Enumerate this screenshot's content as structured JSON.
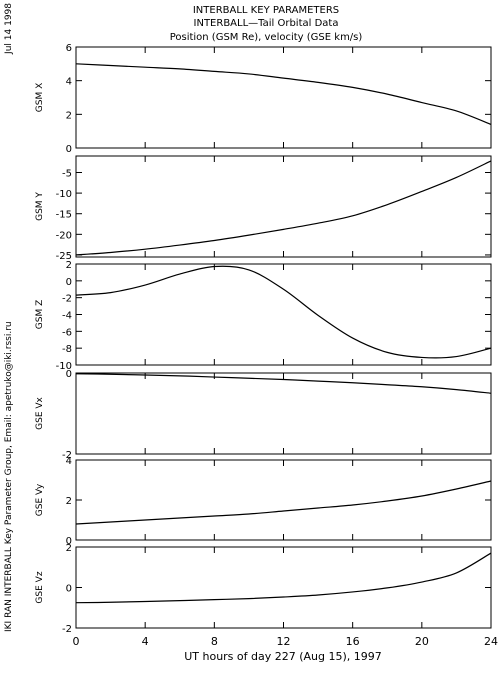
{
  "header": {
    "line1": "INTERBALL KEY PARAMETERS",
    "line2": "INTERBALL—Tail Orbital Data",
    "line3": "Position (GSM Re), velocity (GSE km/s)"
  },
  "side_date": "Jul 14 1998",
  "side_credit": "IKI RAN INTERBALL Key Parameter Group, Email: apetruko@iki.rssi.ru",
  "chart_data": {
    "type": "line",
    "xlabel": "UT hours of day 227 (Aug 15), 1997",
    "xlim": [
      0,
      24
    ],
    "xticks": [
      "0",
      "4",
      "8",
      "12",
      "16",
      "20",
      "24"
    ],
    "x": [
      0,
      2,
      4,
      6,
      8,
      10,
      12,
      14,
      16,
      18,
      20,
      22,
      24
    ],
    "panels": [
      {
        "ylabel": "GSM X",
        "ylim": [
          0,
          6
        ],
        "yticks": [
          "0",
          "2",
          "4",
          "6"
        ],
        "values": [
          5.0,
          4.9,
          4.8,
          4.7,
          4.55,
          4.4,
          4.15,
          3.9,
          3.6,
          3.2,
          2.7,
          2.2,
          1.4
        ]
      },
      {
        "ylabel": "GSM Y",
        "ylim": [
          -25.5,
          -1
        ],
        "yticks": [
          "-25",
          "-20",
          "-15",
          "-10",
          "-5"
        ],
        "values": [
          -25.0,
          -24.4,
          -23.6,
          -22.6,
          -21.5,
          -20.2,
          -18.8,
          -17.3,
          -15.5,
          -12.8,
          -9.6,
          -6.2,
          -2.2
        ]
      },
      {
        "ylabel": "GSM Z",
        "ylim": [
          -10,
          2
        ],
        "yticks": [
          "-10",
          "-8",
          "-6",
          "-4",
          "-2",
          "0",
          "2"
        ],
        "values": [
          -1.7,
          -1.4,
          -0.5,
          0.8,
          1.7,
          1.3,
          -1.0,
          -4.1,
          -6.8,
          -8.5,
          -9.1,
          -9.0,
          -8.0
        ]
      },
      {
        "ylabel": "GSE Vx",
        "ylim": [
          -2,
          0
        ],
        "yticks": [
          "-2",
          "0"
        ],
        "values": [
          -0.02,
          -0.03,
          -0.05,
          -0.07,
          -0.1,
          -0.13,
          -0.16,
          -0.2,
          -0.24,
          -0.29,
          -0.34,
          -0.41,
          -0.5
        ]
      },
      {
        "ylabel": "GSE Vy",
        "ylim": [
          0,
          4
        ],
        "yticks": [
          "0",
          "2",
          "4"
        ],
        "values": [
          0.8,
          0.9,
          1.0,
          1.1,
          1.2,
          1.3,
          1.45,
          1.6,
          1.75,
          1.95,
          2.2,
          2.55,
          2.95
        ]
      },
      {
        "ylabel": "GSE Vz",
        "ylim": [
          -2,
          2
        ],
        "yticks": [
          "-2",
          "0",
          "2"
        ],
        "values": [
          -0.75,
          -0.73,
          -0.69,
          -0.65,
          -0.6,
          -0.55,
          -0.47,
          -0.37,
          -0.22,
          -0.02,
          0.27,
          0.72,
          1.7
        ]
      }
    ]
  }
}
